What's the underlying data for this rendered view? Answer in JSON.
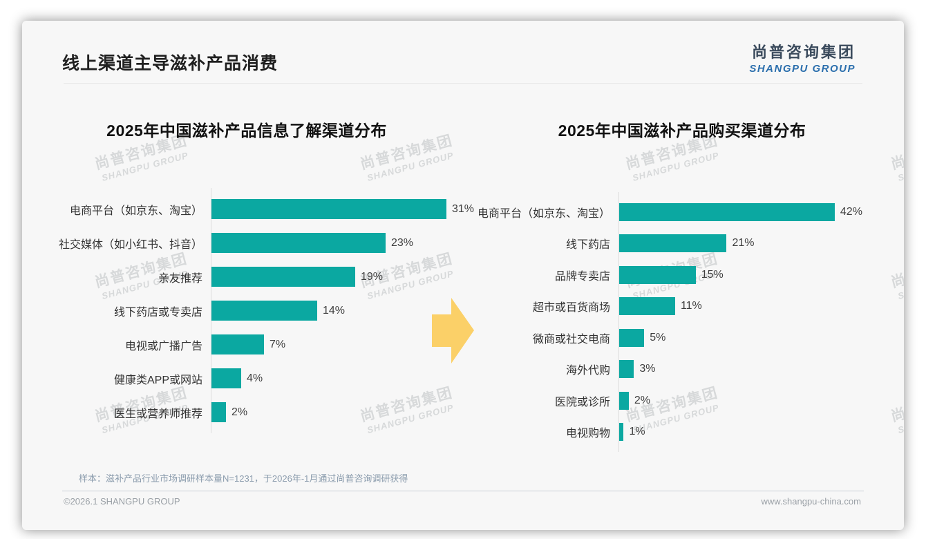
{
  "header": {
    "title": "线上渠道主导滋补产品消费",
    "logo_cn": "尚普咨询集团",
    "logo_en": "SHANGPU GROUP"
  },
  "watermark": {
    "cn": "尚普咨询集团",
    "en": "SHANGPU GROUP"
  },
  "colors": {
    "bar": "#0ba8a1",
    "arrow": "#fbd068",
    "logo_cn": "#3a4a5c",
    "logo_en": "#2c6fad"
  },
  "chart_data": [
    {
      "type": "bar",
      "orientation": "horizontal",
      "title": "2025年中国滋补产品信息了解渠道分布",
      "categories": [
        "电商平台（如京东、淘宝）",
        "社交媒体（如小红书、抖音）",
        "亲友推荐",
        "线下药店或专卖店",
        "电视或广播广告",
        "健康类APP或网站",
        "医生或营养师推荐"
      ],
      "values": [
        31,
        23,
        19,
        14,
        7,
        4,
        2
      ],
      "unit": "%",
      "value_labels": true,
      "bar_color": "#0ba8a1",
      "xlim": [
        0,
        35
      ],
      "grid": false,
      "legend": false
    },
    {
      "type": "bar",
      "orientation": "horizontal",
      "title": "2025年中国滋补产品购买渠道分布",
      "categories": [
        "电商平台（如京东、淘宝）",
        "线下药店",
        "品牌专卖店",
        "超市或百货商场",
        "微商或社交电商",
        "海外代购",
        "医院或诊所",
        "电视购物"
      ],
      "values": [
        42,
        21,
        15,
        11,
        5,
        3,
        2,
        1
      ],
      "unit": "%",
      "value_labels": true,
      "bar_color": "#0ba8a1",
      "xlim": [
        0,
        45
      ],
      "grid": false,
      "legend": false
    }
  ],
  "footer": {
    "sample_note": "样本：滋补产品行业市场调研样本量N=1231，于2026年-1月通过尚普咨询调研获得",
    "copyright": "©2026.1 SHANGPU GROUP",
    "website": "www.shangpu-china.com"
  }
}
